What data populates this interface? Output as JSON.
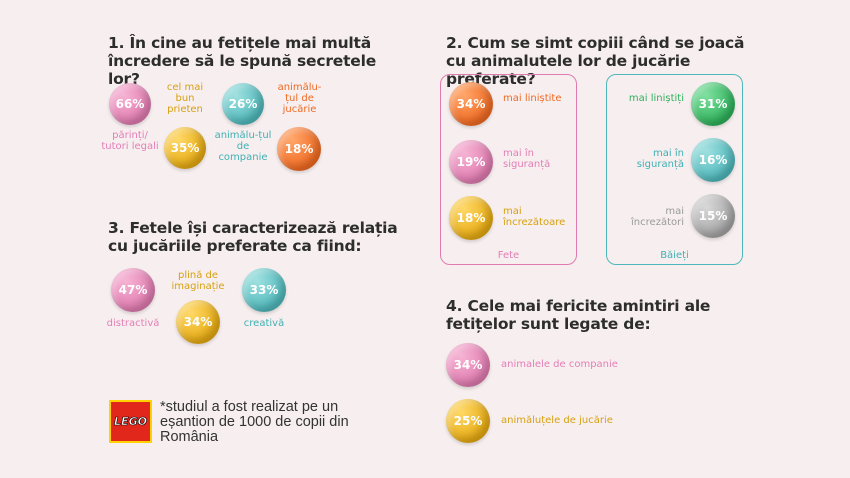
{
  "section1": {
    "title": "1. În cine au fetițele mai multă încredere să le spună secretele lor?",
    "items": [
      {
        "value": "66%",
        "label": "părinți/ tutori legali",
        "color": "#e07bb0"
      },
      {
        "value": "35%",
        "label": "cel mai bun prieten",
        "color": "#e6aa12"
      },
      {
        "value": "26%",
        "label": "animălu-țul de companie",
        "color": "#4fb8bb"
      },
      {
        "value": "18%",
        "label": "animălu-țul de jucărie",
        "color": "#f06a22"
      }
    ]
  },
  "section2": {
    "title": "2. Cum se simt copiii când se joacă cu animalutele lor de jucărie preferate?",
    "girls": {
      "label": "Fete",
      "items": [
        {
          "value": "34%",
          "label": "mai liniștite",
          "color": "#f06a22"
        },
        {
          "value": "19%",
          "label": "mai în siguranță",
          "color": "#e07bb0"
        },
        {
          "value": "18%",
          "label": "mai încrezătoare",
          "color": "#e6aa12"
        }
      ]
    },
    "boys": {
      "label": "Băieți",
      "items": [
        {
          "value": "31%",
          "label": "mai liniștiți",
          "color": "#2eb15a"
        },
        {
          "value": "16%",
          "label": "mai în siguranță",
          "color": "#4fb8bb"
        },
        {
          "value": "15%",
          "label": "mai încrezători",
          "color": "#a4a4a4"
        }
      ]
    }
  },
  "section3": {
    "title": "3. Fetele își caracterizează relația cu jucăriile preferate ca fiind:",
    "items": [
      {
        "value": "47%",
        "label": "distractivă",
        "color": "#e07bb0"
      },
      {
        "value": "34%",
        "label": "plină de imaginație",
        "color": "#e6aa12"
      },
      {
        "value": "33%",
        "label": "creativă",
        "color": "#4fb8bb"
      }
    ]
  },
  "section4": {
    "title": "4. Cele mai fericite amintiri ale fetițelor sunt legate de:",
    "items": [
      {
        "value": "34%",
        "label": "animalele de companie",
        "color": "#e07bb0"
      },
      {
        "value": "25%",
        "label": "animăluțele de jucărie",
        "color": "#e6aa12"
      }
    ]
  },
  "footer": {
    "logo": "LEGO",
    "note": "*studiul a fost realizat pe un eșantion de 1000 de copii din România"
  }
}
